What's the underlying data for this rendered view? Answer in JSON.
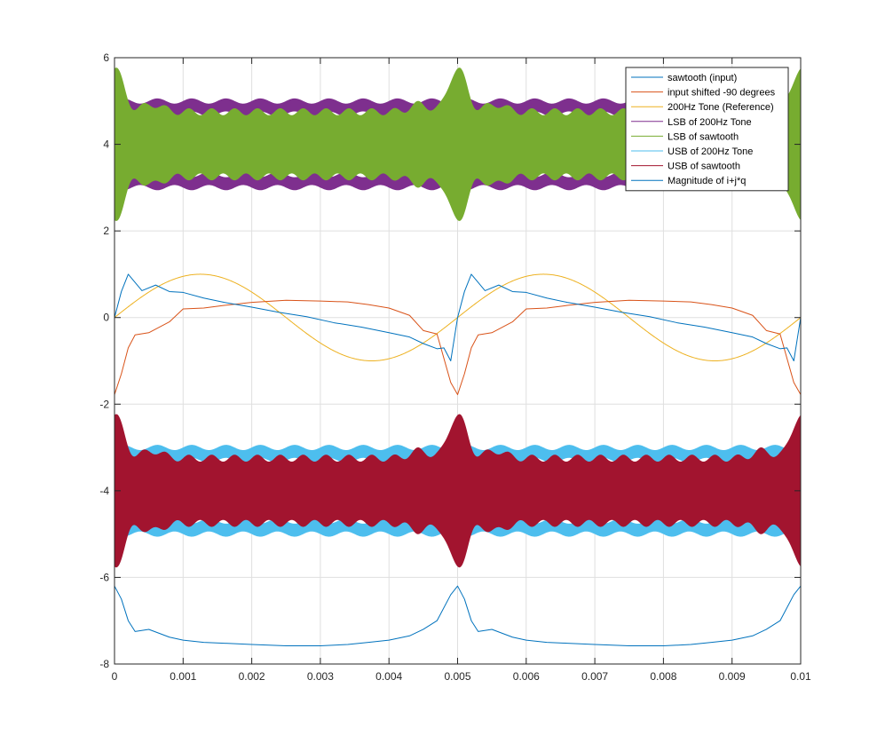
{
  "chart_data": {
    "type": "line",
    "title": "",
    "xlabel": "",
    "ylabel": "",
    "xlim": [
      0,
      0.01
    ],
    "ylim": [
      -8,
      6
    ],
    "grid": true,
    "x_ticks": [
      0,
      0.001,
      0.002,
      0.003,
      0.004,
      0.005,
      0.006,
      0.007,
      0.008,
      0.009,
      0.01
    ],
    "x_tick_labels": [
      "0",
      "0.001",
      "0.002",
      "0.003",
      "0.004",
      "0.005",
      "0.006",
      "0.007",
      "0.008",
      "0.009",
      "0.01"
    ],
    "y_ticks": [
      -8,
      -6,
      -4,
      -2,
      0,
      2,
      4,
      6
    ],
    "y_tick_labels": [
      "-8",
      "-6",
      "-4",
      "-2",
      "0",
      "2",
      "4",
      "6"
    ],
    "legend_position": "top-right",
    "series": [
      {
        "name": "sawtooth (input)",
        "color": "#0072BD",
        "kind": "line",
        "x": [
          0,
          0.0001,
          0.0002,
          0.0004,
          0.0006,
          0.0008,
          0.001,
          0.0013,
          0.0016,
          0.002,
          0.0024,
          0.0028,
          0.0032,
          0.0036,
          0.004,
          0.0043,
          0.0045,
          0.0047,
          0.0048,
          0.0049,
          0.005,
          0.0051,
          0.0052,
          0.0054,
          0.0056,
          0.0058,
          0.006,
          0.0063,
          0.0066,
          0.007,
          0.0074,
          0.0078,
          0.0082,
          0.0086,
          0.009,
          0.0093,
          0.0095,
          0.0097,
          0.0098,
          0.0099,
          0.01
        ],
        "y": [
          0,
          0.6,
          1.0,
          0.62,
          0.75,
          0.6,
          0.58,
          0.45,
          0.35,
          0.24,
          0.12,
          0.02,
          -0.12,
          -0.22,
          -0.35,
          -0.45,
          -0.6,
          -0.72,
          -0.7,
          -1.0,
          0,
          0.6,
          1.0,
          0.62,
          0.75,
          0.6,
          0.58,
          0.45,
          0.35,
          0.24,
          0.12,
          0.02,
          -0.12,
          -0.22,
          -0.35,
          -0.45,
          -0.6,
          -0.72,
          -0.7,
          -1.0,
          0
        ]
      },
      {
        "name": "input shifted -90 degrees",
        "color": "#D95319",
        "kind": "line",
        "x": [
          0,
          0.0001,
          0.0002,
          0.0003,
          0.0005,
          0.0008,
          0.001,
          0.0013,
          0.0016,
          0.002,
          0.0025,
          0.003,
          0.0034,
          0.0037,
          0.004,
          0.0043,
          0.0045,
          0.0047,
          0.0049,
          0.005,
          0.0051,
          0.0052,
          0.0053,
          0.0055,
          0.0058,
          0.006,
          0.0063,
          0.0066,
          0.007,
          0.0075,
          0.008,
          0.0084,
          0.0087,
          0.009,
          0.0093,
          0.0095,
          0.0097,
          0.0099,
          0.01
        ],
        "y": [
          -1.78,
          -1.3,
          -0.7,
          -0.4,
          -0.35,
          -0.1,
          0.2,
          0.22,
          0.28,
          0.35,
          0.4,
          0.38,
          0.36,
          0.3,
          0.22,
          0.05,
          -0.3,
          -0.38,
          -1.5,
          -1.78,
          -1.3,
          -0.7,
          -0.4,
          -0.35,
          -0.1,
          0.2,
          0.22,
          0.28,
          0.35,
          0.4,
          0.38,
          0.36,
          0.3,
          0.22,
          0.05,
          -0.3,
          -0.38,
          -1.5,
          -1.78
        ]
      },
      {
        "name": "200Hz Tone (Reference)",
        "color": "#EDB120",
        "kind": "sine",
        "amplitude": 1,
        "frequency_hz": 200,
        "offset": 0
      },
      {
        "name": "LSB of 200Hz Tone",
        "color": "#7E2F8E",
        "kind": "band",
        "center": 4,
        "outer_half_width": 1.0,
        "inner_half_width": 0.7
      },
      {
        "name": "LSB of sawtooth",
        "color": "#77AC30",
        "kind": "band",
        "center": 4,
        "envelope_peak": 5.75,
        "envelope_floor": 5.0,
        "envelope_dip": 4.55
      },
      {
        "name": "USB of 200Hz Tone",
        "color": "#4DBEEE",
        "kind": "band",
        "center": -4,
        "outer_half_width": 1.0,
        "inner_half_width": 0.7
      },
      {
        "name": "USB of sawtooth",
        "color": "#A2142F",
        "kind": "band",
        "center": -4,
        "envelope_peak": -2.25,
        "envelope_floor": -3.0,
        "envelope_dip": -3.45
      },
      {
        "name": "Magnitude of i+j*q",
        "color": "#0072BD",
        "kind": "line",
        "x": [
          0,
          0.0001,
          0.0002,
          0.0003,
          0.0005,
          0.0008,
          0.001,
          0.0013,
          0.0016,
          0.002,
          0.0025,
          0.003,
          0.0034,
          0.0037,
          0.004,
          0.0043,
          0.0045,
          0.0047,
          0.0049,
          0.005,
          0.0051,
          0.0052,
          0.0053,
          0.0055,
          0.0058,
          0.006,
          0.0063,
          0.0066,
          0.007,
          0.0075,
          0.008,
          0.0084,
          0.0087,
          0.009,
          0.0093,
          0.0095,
          0.0097,
          0.0099,
          0.01
        ],
        "y": [
          -6.2,
          -6.5,
          -7.0,
          -7.25,
          -7.2,
          -7.38,
          -7.45,
          -7.5,
          -7.52,
          -7.55,
          -7.58,
          -7.58,
          -7.55,
          -7.5,
          -7.45,
          -7.35,
          -7.2,
          -7.0,
          -6.4,
          -6.2,
          -6.5,
          -7.0,
          -7.25,
          -7.2,
          -7.38,
          -7.45,
          -7.5,
          -7.52,
          -7.55,
          -7.58,
          -7.58,
          -7.55,
          -7.5,
          -7.45,
          -7.35,
          -7.2,
          -7.0,
          -6.4,
          -6.2
        ]
      }
    ]
  }
}
